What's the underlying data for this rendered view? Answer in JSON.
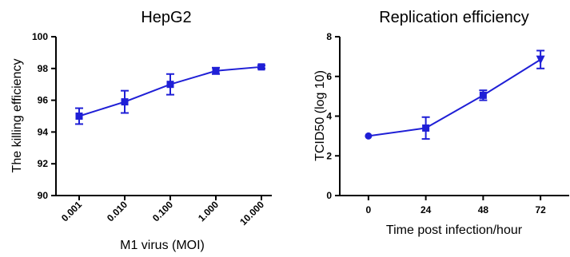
{
  "colors": {
    "series": "#1f1fd6",
    "axis": "#000000"
  },
  "chart_data": [
    {
      "type": "line",
      "title": "HepG2",
      "xlabel": "M1 virus (MOI)",
      "ylabel": "The killing efficiency",
      "categories": [
        "0.001",
        "0.010",
        "0.100",
        "1.000",
        "10.000"
      ],
      "ylim": [
        90,
        100
      ],
      "yticks": [
        90,
        92,
        94,
        96,
        98,
        100
      ],
      "grid": false,
      "legend": "none",
      "marker": "square",
      "series": [
        {
          "values": [
            95.0,
            95.9,
            97.0,
            97.85,
            98.1
          ],
          "errors": [
            0.5,
            0.7,
            0.65,
            0.2,
            0.1
          ]
        }
      ]
    },
    {
      "type": "line",
      "title": "Replication efficiency",
      "xlabel": "Time post infection/hour",
      "ylabel": "TCID50 (log 10)",
      "x": [
        0,
        24,
        48,
        72
      ],
      "xticks": [
        0,
        24,
        48,
        72
      ],
      "xlim": [
        -12,
        84
      ],
      "ylim": [
        0,
        8
      ],
      "yticks": [
        0,
        2,
        4,
        6,
        8
      ],
      "grid": false,
      "legend": "none",
      "markers": [
        "circle",
        "square",
        "square",
        "triangle-down"
      ],
      "series": [
        {
          "values": [
            3.0,
            3.4,
            5.05,
            6.85
          ],
          "errors": [
            0.05,
            0.55,
            0.25,
            0.45
          ]
        }
      ]
    }
  ]
}
